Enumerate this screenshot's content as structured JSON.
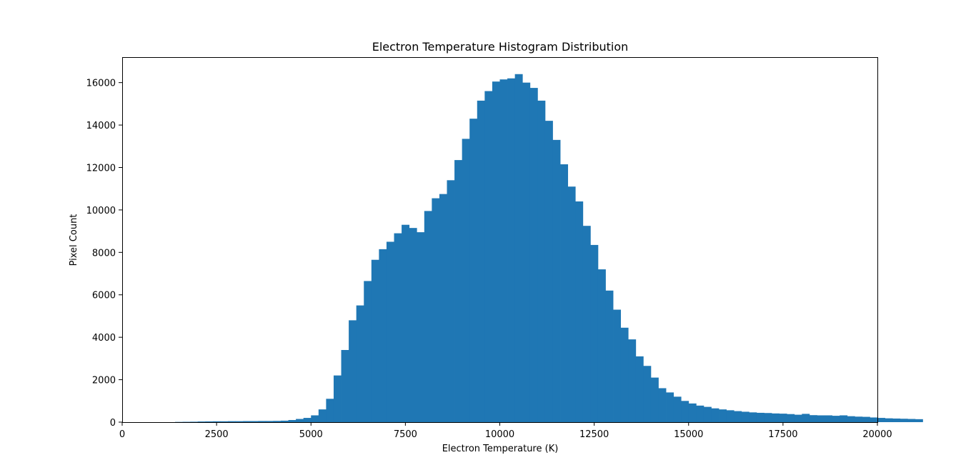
{
  "chart_data": {
    "type": "bar",
    "title": "Electron Temperature Histogram Distribution",
    "xlabel": "Electron Temperature (K)",
    "ylabel": "Pixel Count",
    "xlim": [
      0,
      20000
    ],
    "ylim": [
      0,
      17200
    ],
    "grid": false,
    "legend": "none",
    "bar_color": "#1f77b4",
    "xticks": [
      0,
      2500,
      5000,
      7500,
      10000,
      12500,
      15000,
      17500,
      20000
    ],
    "xtick_labels": [
      "0",
      "2500",
      "5000",
      "7500",
      "10000",
      "12500",
      "15000",
      "17500",
      "20000"
    ],
    "yticks": [
      0,
      2000,
      4000,
      6000,
      8000,
      10000,
      12000,
      14000,
      16000
    ],
    "ytick_labels": [
      "0",
      "2000",
      "4000",
      "6000",
      "8000",
      "10000",
      "12000",
      "14000",
      "16000"
    ],
    "bin_width": 200,
    "bin_edges_start": 1200,
    "values": [
      0,
      10,
      15,
      20,
      30,
      35,
      40,
      40,
      45,
      45,
      50,
      50,
      55,
      55,
      60,
      70,
      100,
      150,
      200,
      320,
      600,
      1100,
      2200,
      3400,
      4800,
      5500,
      6650,
      7650,
      8150,
      8500,
      8900,
      9300,
      9150,
      8950,
      9950,
      10550,
      10750,
      11400,
      12350,
      13350,
      14300,
      15150,
      15600,
      16050,
      16150,
      16200,
      16400,
      16000,
      15750,
      15150,
      14200,
      13300,
      12150,
      11100,
      10400,
      9250,
      8350,
      7200,
      6200,
      5300,
      4450,
      3900,
      3100,
      2650,
      2100,
      1600,
      1400,
      1200,
      1000,
      880,
      780,
      720,
      650,
      600,
      560,
      520,
      490,
      460,
      440,
      430,
      410,
      400,
      380,
      350,
      390,
      330,
      320,
      320,
      300,
      320,
      280,
      260,
      250,
      220,
      200,
      180,
      170,
      160,
      150,
      140
    ]
  }
}
